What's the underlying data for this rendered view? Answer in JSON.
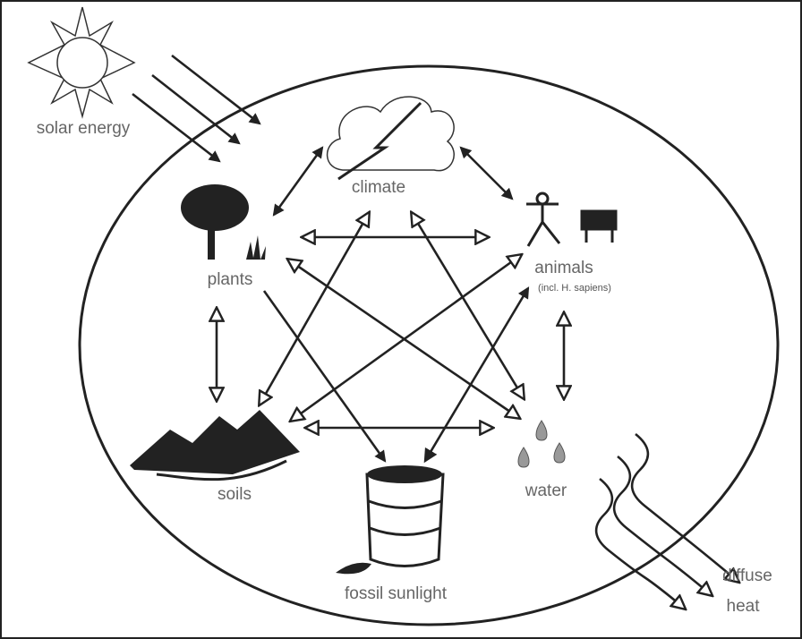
{
  "nodes": [
    {
      "label": "solar energy"
    },
    {
      "label": "climate"
    },
    {
      "label": "plants"
    },
    {
      "label": "animals",
      "note": "(incl. H. sapiens)"
    },
    {
      "label": "soils"
    },
    {
      "label": "water"
    },
    {
      "label": "fossil sunlight"
    },
    {
      "label": "diffuse",
      "label2": "heat"
    }
  ]
}
